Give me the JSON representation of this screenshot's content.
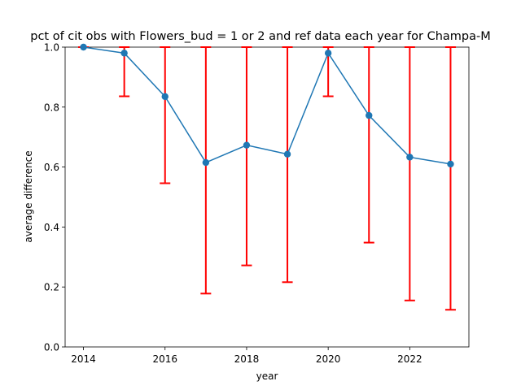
{
  "chart_data": {
    "type": "line",
    "title": "pct of cit obs with Flowers_bud = 1 or 2 and ref data each year for Champa-M",
    "xlabel": "year",
    "ylabel": "average difference",
    "xlim": [
      2013.55,
      2023.45
    ],
    "ylim": [
      0.0,
      1.0
    ],
    "xticks": [
      "2014",
      "2016",
      "2018",
      "2020",
      "2022"
    ],
    "yticks": [
      "0.0",
      "0.2",
      "0.4",
      "0.6",
      "0.8",
      "1.0"
    ],
    "grid": false,
    "series": [
      {
        "color": "#1f77b4",
        "marker": "circle",
        "x": [
          2014,
          2015,
          2016,
          2017,
          2018,
          2019,
          2020,
          2021,
          2022,
          2023
        ],
        "y": [
          1.0,
          0.98,
          0.835,
          0.615,
          0.673,
          0.643,
          0.98,
          0.772,
          0.633,
          0.61
        ],
        "error_bars": {
          "color": "#ff0000",
          "lower": [
            1.0,
            0.836,
            0.546,
            0.178,
            0.272,
            0.216,
            0.836,
            0.348,
            0.155,
            0.124
          ],
          "upper": [
            1.0,
            1.0,
            1.0,
            1.0,
            1.0,
            1.0,
            1.0,
            1.0,
            1.0,
            1.0
          ]
        }
      }
    ]
  }
}
